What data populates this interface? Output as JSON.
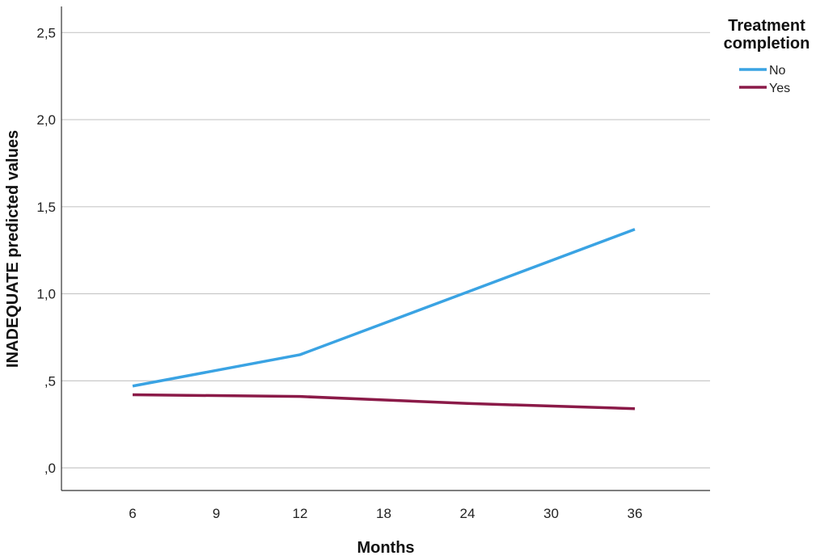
{
  "chart_data": {
    "type": "line",
    "xlabel": "Months",
    "ylabel": "INADEQUATE predicted values",
    "categories": [
      "6",
      "9",
      "12",
      "18",
      "24",
      "30",
      "36"
    ],
    "y_ticks": [
      ",0",
      ",5",
      "1,0",
      "1,5",
      "2,0",
      "2,5"
    ],
    "y_tick_values": [
      0,
      0.5,
      1.0,
      1.5,
      2.0,
      2.5
    ],
    "ylim": [
      -0.13,
      2.65
    ],
    "grid": true,
    "legend": {
      "title": "Treatment completion",
      "title_lines": [
        "Treatment",
        "completion"
      ],
      "placement": "top-right"
    },
    "series": [
      {
        "name": "No",
        "color": "#3aa3e3",
        "points": [
          {
            "x": "6",
            "y": 0.47
          },
          {
            "x": "12",
            "y": 0.65
          },
          {
            "x": "24",
            "y": 1.01
          },
          {
            "x": "36",
            "y": 1.37
          }
        ]
      },
      {
        "name": "Yes",
        "color": "#8b1a48",
        "points": [
          {
            "x": "6",
            "y": 0.42
          },
          {
            "x": "12",
            "y": 0.41
          },
          {
            "x": "24",
            "y": 0.37
          },
          {
            "x": "36",
            "y": 0.34
          }
        ]
      }
    ]
  }
}
